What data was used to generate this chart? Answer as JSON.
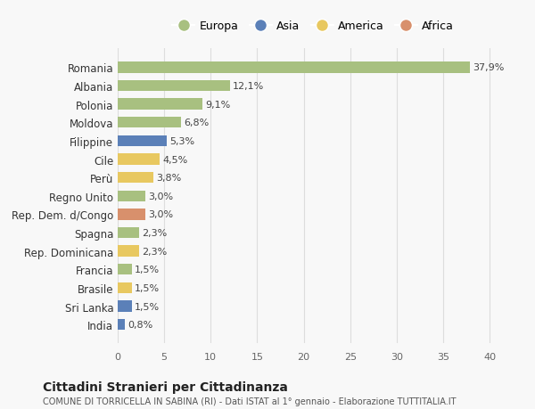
{
  "categories": [
    "Romania",
    "Albania",
    "Polonia",
    "Moldova",
    "Filippine",
    "Cile",
    "Perù",
    "Regno Unito",
    "Rep. Dem. d/Congo",
    "Spagna",
    "Rep. Dominicana",
    "Francia",
    "Brasile",
    "Sri Lanka",
    "India"
  ],
  "values": [
    37.9,
    12.1,
    9.1,
    6.8,
    5.3,
    4.5,
    3.8,
    3.0,
    3.0,
    2.3,
    2.3,
    1.5,
    1.5,
    1.5,
    0.8
  ],
  "labels": [
    "37,9%",
    "12,1%",
    "9,1%",
    "6,8%",
    "5,3%",
    "4,5%",
    "3,8%",
    "3,0%",
    "3,0%",
    "2,3%",
    "2,3%",
    "1,5%",
    "1,5%",
    "1,5%",
    "0,8%"
  ],
  "colors": [
    "#a8c080",
    "#a8c080",
    "#a8c080",
    "#a8c080",
    "#5b80b8",
    "#e8c860",
    "#e8c860",
    "#a8c080",
    "#d8906c",
    "#a8c080",
    "#e8c860",
    "#a8c080",
    "#e8c860",
    "#5b80b8",
    "#5b80b8"
  ],
  "legend": [
    {
      "label": "Europa",
      "color": "#a8c080"
    },
    {
      "label": "Asia",
      "color": "#5b80b8"
    },
    {
      "label": "America",
      "color": "#e8c860"
    },
    {
      "label": "Africa",
      "color": "#d8906c"
    }
  ],
  "xlim": [
    0,
    42
  ],
  "xticks": [
    0,
    5,
    10,
    15,
    20,
    25,
    30,
    35,
    40
  ],
  "title": "Cittadini Stranieri per Cittadinanza",
  "subtitle": "COMUNE DI TORRICELLA IN SABINA (RI) - Dati ISTAT al 1° gennaio - Elaborazione TUTTITALIA.IT",
  "bg_color": "#f8f8f8",
  "grid_color": "#dddddd"
}
